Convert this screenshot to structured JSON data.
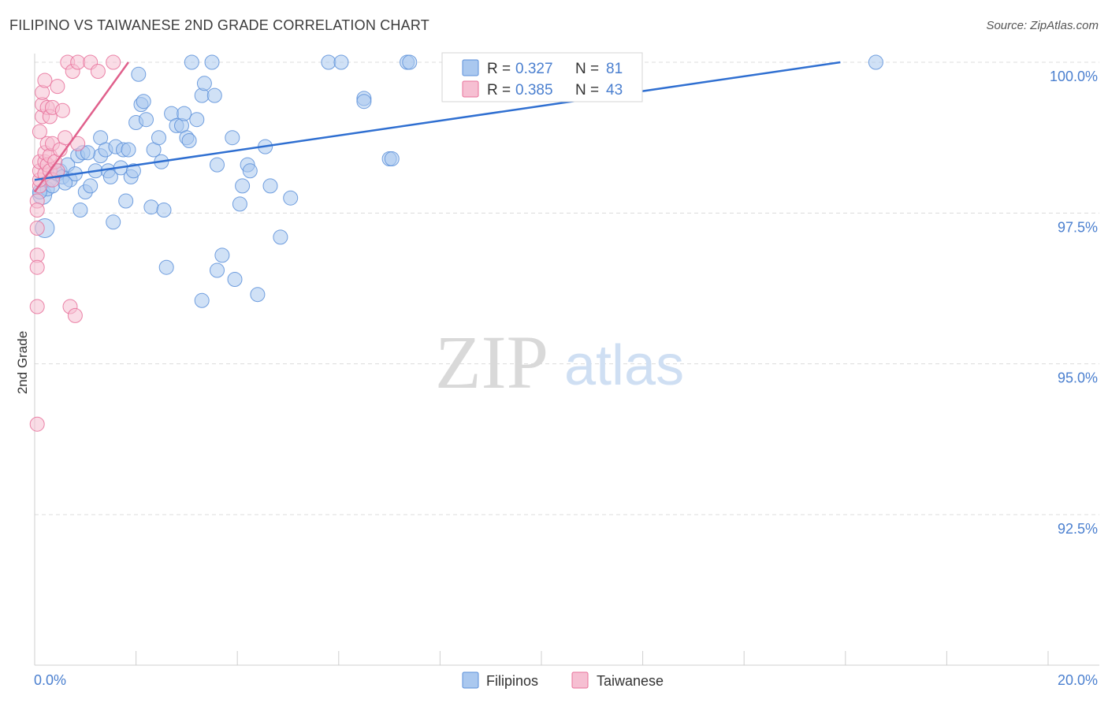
{
  "header": {
    "title": "FILIPINO VS TAIWANESE 2ND GRADE CORRELATION CHART",
    "source": "Source: ZipAtlas.com"
  },
  "watermark": {
    "zip": "ZIP",
    "atlas": "atlas"
  },
  "chart_data": {
    "type": "scatter",
    "title": "FILIPINO VS TAIWANESE 2ND GRADE CORRELATION CHART",
    "xlabel": "",
    "ylabel": "2nd Grade",
    "xlim": [
      0.0,
      20.0
    ],
    "ylim": [
      90.0,
      100.2
    ],
    "x_tick_labels": [
      "0.0%",
      "20.0%"
    ],
    "y_ticks": [
      100.0,
      97.5,
      95.0,
      92.5
    ],
    "y_tick_labels": [
      "100.0%",
      "97.5%",
      "95.0%",
      "92.5%"
    ],
    "legend_placement": "top-center",
    "stats": [
      {
        "r_label": "R = ",
        "r_value": "0.327",
        "n_label": "N = ",
        "n_value": "81"
      },
      {
        "r_label": "R = ",
        "r_value": "0.385",
        "n_label": "N = ",
        "n_value": "43"
      }
    ],
    "series": [
      {
        "name": "Filipinos",
        "color": "#5b8fd9",
        "fill": "#aac8ef",
        "trend": {
          "x": [
            0.0,
            15.9
          ],
          "y": [
            98.05,
            100.0
          ]
        },
        "points": [
          [
            0.15,
            97.8
          ],
          [
            0.2,
            97.25
          ],
          [
            0.25,
            97.9
          ],
          [
            0.3,
            98.05
          ],
          [
            0.35,
            97.95
          ],
          [
            0.45,
            98.15
          ],
          [
            0.5,
            98.2
          ],
          [
            0.55,
            98.1
          ],
          [
            0.65,
            98.3
          ],
          [
            0.7,
            98.05
          ],
          [
            0.8,
            98.15
          ],
          [
            0.9,
            97.55
          ],
          [
            0.85,
            98.45
          ],
          [
            0.95,
            98.5
          ],
          [
            1.0,
            97.85
          ],
          [
            1.1,
            97.95
          ],
          [
            1.2,
            98.2
          ],
          [
            1.3,
            98.45
          ],
          [
            1.3,
            98.75
          ],
          [
            1.4,
            98.55
          ],
          [
            1.45,
            98.2
          ],
          [
            1.5,
            98.1
          ],
          [
            1.55,
            97.35
          ],
          [
            1.6,
            98.6
          ],
          [
            1.7,
            98.25
          ],
          [
            1.75,
            98.55
          ],
          [
            1.8,
            97.7
          ],
          [
            1.85,
            98.55
          ],
          [
            1.9,
            98.1
          ],
          [
            1.95,
            98.2
          ],
          [
            2.0,
            99.0
          ],
          [
            2.05,
            99.8
          ],
          [
            2.1,
            99.3
          ],
          [
            2.15,
            99.35
          ],
          [
            2.2,
            99.05
          ],
          [
            2.3,
            97.6
          ],
          [
            2.35,
            98.55
          ],
          [
            2.45,
            98.75
          ],
          [
            2.5,
            98.35
          ],
          [
            2.55,
            97.55
          ],
          [
            2.6,
            96.6
          ],
          [
            2.7,
            99.15
          ],
          [
            2.8,
            98.95
          ],
          [
            2.9,
            98.95
          ],
          [
            2.95,
            99.15
          ],
          [
            3.0,
            98.75
          ],
          [
            3.05,
            98.7
          ],
          [
            3.1,
            100.0
          ],
          [
            3.2,
            99.05
          ],
          [
            3.3,
            99.45
          ],
          [
            3.35,
            99.65
          ],
          [
            3.3,
            96.05
          ],
          [
            3.5,
            100.0
          ],
          [
            3.55,
            99.45
          ],
          [
            3.6,
            96.55
          ],
          [
            3.6,
            98.3
          ],
          [
            3.7,
            96.8
          ],
          [
            3.9,
            98.75
          ],
          [
            3.95,
            96.4
          ],
          [
            4.05,
            97.65
          ],
          [
            4.1,
            97.95
          ],
          [
            4.2,
            98.3
          ],
          [
            4.25,
            98.2
          ],
          [
            4.4,
            96.15
          ],
          [
            4.55,
            98.6
          ],
          [
            4.65,
            97.95
          ],
          [
            4.85,
            97.1
          ],
          [
            5.05,
            97.75
          ],
          [
            5.8,
            100.0
          ],
          [
            6.05,
            100.0
          ],
          [
            6.5,
            99.4
          ],
          [
            6.5,
            99.35
          ],
          [
            7.0,
            98.4
          ],
          [
            7.05,
            98.4
          ],
          [
            7.35,
            100.0
          ],
          [
            7.4,
            100.0
          ],
          [
            11.3,
            100.0
          ],
          [
            16.6,
            100.0
          ],
          [
            0.1,
            97.85
          ],
          [
            0.6,
            98.0
          ],
          [
            1.05,
            98.5
          ]
        ]
      },
      {
        "name": "Taiwanese",
        "color": "#e8709a",
        "fill": "#f6bfd2",
        "trend": {
          "x": [
            0.0,
            1.85
          ],
          "y": [
            97.85,
            100.0
          ]
        },
        "points": [
          [
            0.05,
            97.7
          ],
          [
            0.05,
            97.55
          ],
          [
            0.05,
            97.25
          ],
          [
            0.05,
            96.8
          ],
          [
            0.05,
            96.6
          ],
          [
            0.05,
            95.95
          ],
          [
            0.05,
            94.0
          ],
          [
            0.1,
            97.95
          ],
          [
            0.1,
            98.05
          ],
          [
            0.1,
            98.2
          ],
          [
            0.1,
            98.35
          ],
          [
            0.1,
            98.85
          ],
          [
            0.15,
            99.1
          ],
          [
            0.15,
            99.3
          ],
          [
            0.15,
            99.5
          ],
          [
            0.2,
            98.15
          ],
          [
            0.2,
            98.35
          ],
          [
            0.2,
            98.5
          ],
          [
            0.2,
            99.7
          ],
          [
            0.25,
            98.3
          ],
          [
            0.25,
            98.65
          ],
          [
            0.25,
            99.25
          ],
          [
            0.3,
            98.45
          ],
          [
            0.3,
            98.2
          ],
          [
            0.3,
            99.1
          ],
          [
            0.35,
            98.05
          ],
          [
            0.35,
            98.65
          ],
          [
            0.35,
            99.25
          ],
          [
            0.4,
            98.35
          ],
          [
            0.45,
            98.2
          ],
          [
            0.45,
            99.6
          ],
          [
            0.5,
            98.55
          ],
          [
            0.55,
            99.2
          ],
          [
            0.6,
            98.75
          ],
          [
            0.65,
            100.0
          ],
          [
            0.7,
            95.95
          ],
          [
            0.75,
            99.85
          ],
          [
            0.8,
            95.8
          ],
          [
            0.85,
            100.0
          ],
          [
            0.85,
            98.65
          ],
          [
            1.1,
            100.0
          ],
          [
            1.25,
            99.85
          ],
          [
            1.55,
            100.0
          ]
        ]
      }
    ]
  }
}
